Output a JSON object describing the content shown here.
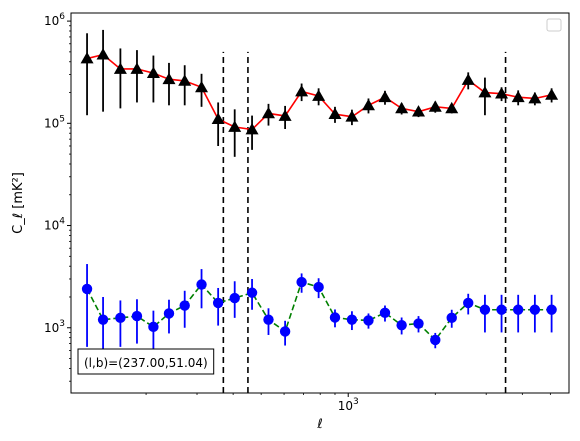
{
  "chart_data": {
    "type": "scatter",
    "xscale": "log",
    "yscale": "log",
    "xlim": [
      110,
      5800
    ],
    "ylim": [
      230,
      1200000
    ],
    "xlabel": "ℓ",
    "ylabel": "C_ℓ  [mK²]",
    "xticks": [
      {
        "value": 1000,
        "base": "10",
        "exp": "3"
      }
    ],
    "yticks": [
      {
        "value": 1000,
        "base": "10",
        "exp": "3"
      },
      {
        "value": 10000,
        "base": "10",
        "exp": "4"
      },
      {
        "value": 100000,
        "base": "10",
        "exp": "5"
      },
      {
        "value": 1000000,
        "base": "10",
        "exp": "6"
      }
    ],
    "vlines": [
      370,
      450,
      3500
    ],
    "vline_range": [
      230,
      500000
    ],
    "legend": "upper right (empty)",
    "grid": false,
    "annotation": "(l,b)=(237.00,51.04)",
    "series": [
      {
        "color": "#ff0000",
        "marker": "triangle",
        "marker_color": "#000000",
        "errorbar_color": "#000000",
        "linestyle": "solid",
        "x": [
          125,
          142,
          163,
          186,
          212,
          240,
          272,
          311,
          355,
          405,
          465,
          530,
          605,
          690,
          790,
          900,
          1030,
          1175,
          1340,
          1530,
          1750,
          2000,
          2280,
          2600,
          2970,
          3390,
          3870,
          4420,
          5050
        ],
        "y": [
          430000,
          470000,
          340000,
          340000,
          310000,
          270000,
          260000,
          225000,
          110000,
          92000,
          87000,
          125000,
          118000,
          205000,
          185000,
          123000,
          116000,
          150000,
          180000,
          140000,
          130000,
          145000,
          140000,
          265000,
          200000,
          195000,
          180000,
          175000,
          190000
        ],
        "err_low": [
          310000,
          340000,
          200000,
          180000,
          150000,
          120000,
          110000,
          80000,
          50000,
          45000,
          32000,
          30000,
          30000,
          40000,
          35000,
          22000,
          20000,
          25000,
          28000,
          18000,
          15000,
          18000,
          15000,
          50000,
          80000,
          30000,
          30000,
          25000,
          30000
        ],
        "err_high": [
          330000,
          350000,
          200000,
          180000,
          150000,
          120000,
          110000,
          80000,
          50000,
          45000,
          32000,
          30000,
          30000,
          40000,
          35000,
          22000,
          20000,
          25000,
          28000,
          18000,
          15000,
          18000,
          15000,
          50000,
          80000,
          30000,
          30000,
          25000,
          30000
        ]
      },
      {
        "color": "#008000",
        "marker": "circle",
        "marker_color": "#0000ff",
        "errorbar_color": "#0000ff",
        "linestyle": "dashed",
        "x": [
          125,
          142,
          163,
          186,
          212,
          240,
          272,
          311,
          355,
          405,
          465,
          530,
          605,
          690,
          790,
          900,
          1030,
          1175,
          1340,
          1530,
          1750,
          2000,
          2280,
          2600,
          2970,
          3390,
          3870,
          4420,
          5050
        ],
        "y": [
          2400,
          1200,
          1250,
          1300,
          1020,
          1380,
          1650,
          2650,
          1750,
          1950,
          2200,
          1200,
          920,
          2800,
          2500,
          1260,
          1200,
          1180,
          1400,
          1060,
          1100,
          760,
          1250,
          1750,
          1500,
          1500,
          1500,
          1500,
          1500
        ],
        "err_low": [
          1750,
          800,
          600,
          600,
          450,
          500,
          650,
          1100,
          700,
          700,
          700,
          350,
          250,
          600,
          550,
          250,
          250,
          200,
          250,
          200,
          200,
          130,
          250,
          400,
          600,
          600,
          600,
          600,
          600
        ],
        "err_high": [
          1800,
          800,
          600,
          600,
          450,
          500,
          650,
          1100,
          700,
          900,
          800,
          350,
          250,
          600,
          550,
          250,
          250,
          200,
          250,
          200,
          200,
          130,
          250,
          400,
          600,
          600,
          600,
          600,
          600
        ]
      }
    ]
  }
}
